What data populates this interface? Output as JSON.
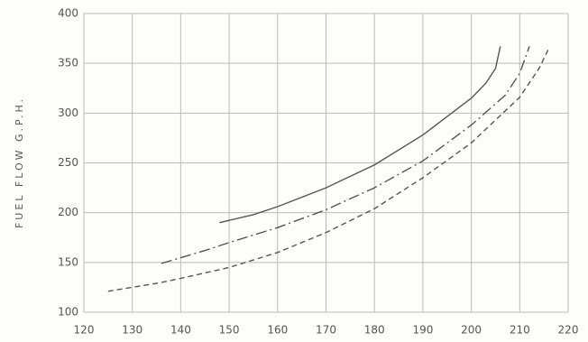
{
  "chart_data": {
    "type": "line",
    "y_label": "FUEL FLOW G.P.H.",
    "xlim": [
      120,
      220
    ],
    "xticks": [
      120,
      130,
      140,
      150,
      160,
      170,
      180,
      190,
      200,
      210,
      220
    ],
    "ylim": [
      100,
      400
    ],
    "yticks": [
      100,
      150,
      200,
      250,
      300,
      350,
      400
    ],
    "grid": true,
    "series": [
      {
        "color": "#555555",
        "dash": "solid",
        "x": [
          148,
          155,
          160,
          170,
          180,
          190,
          200,
          203,
          205,
          206
        ],
        "values": [
          190,
          198,
          206,
          225,
          248,
          278,
          315,
          330,
          345,
          367
        ]
      },
      {
        "color": "#555555",
        "dash": "dashdot",
        "x": [
          136,
          145,
          150,
          160,
          170,
          180,
          190,
          200,
          207,
          210,
          212
        ],
        "values": [
          149,
          162,
          170,
          185,
          203,
          225,
          252,
          288,
          318,
          340,
          367
        ]
      },
      {
        "color": "#555555",
        "dash": "dashed",
        "x": [
          125,
          135,
          140,
          150,
          160,
          170,
          180,
          190,
          200,
          210,
          214,
          216
        ],
        "values": [
          121,
          129,
          134,
          145,
          160,
          180,
          204,
          235,
          270,
          316,
          345,
          365
        ]
      }
    ]
  }
}
